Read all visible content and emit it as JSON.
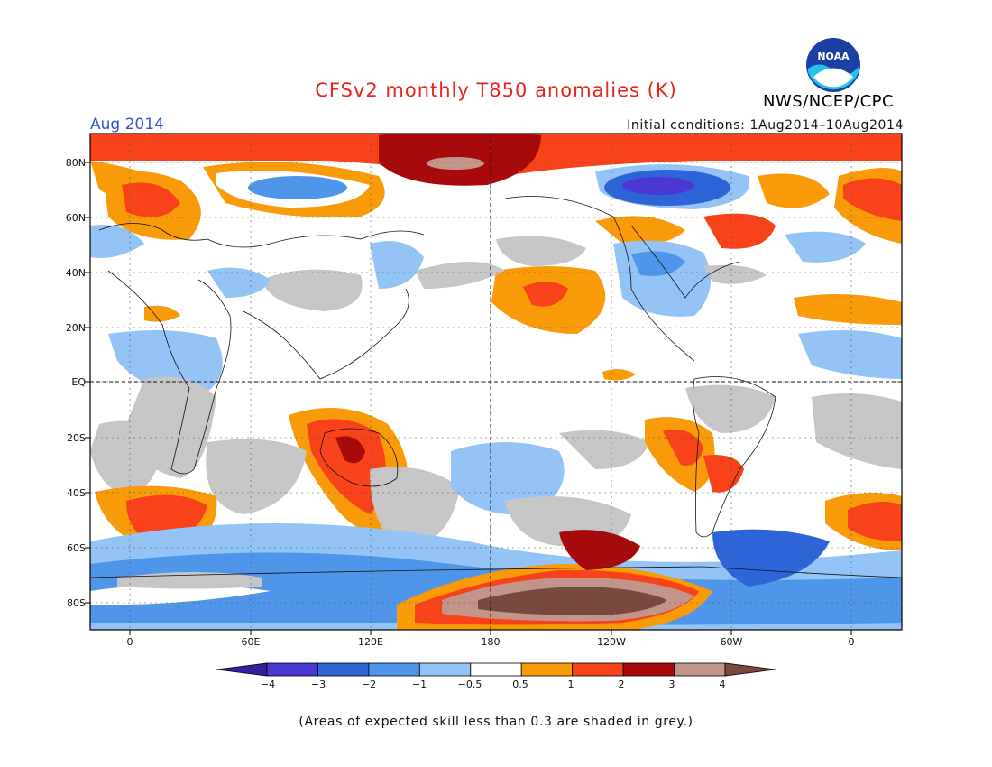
{
  "header": {
    "title": "CFSv2 monthly T850 anomalies (K)",
    "org": "NWS/NCEP/CPC",
    "month": "Aug 2014",
    "initial_conditions": "Initial conditions: 1Aug2014–10Aug2014",
    "logo_text": "NOAA"
  },
  "axes": {
    "lat_labels": [
      "80N",
      "60N",
      "40N",
      "20N",
      "EQ",
      "20S",
      "40S",
      "60S",
      "80S"
    ],
    "lon_labels": [
      "0",
      "60E",
      "120E",
      "180",
      "120W",
      "60W",
      "0"
    ]
  },
  "colorbar": {
    "colors": [
      "#3a1ea0",
      "#4a38d0",
      "#2d65d8",
      "#4f95ea",
      "#93c4f5",
      "#ffffff",
      "#f99a08",
      "#f7421a",
      "#a60a0a",
      "#c2948a",
      "#78493d"
    ],
    "tick_labels": [
      "−4",
      "−3",
      "−2",
      "−1",
      "−0.5",
      "0.5",
      "1",
      "2",
      "3",
      "4"
    ]
  },
  "legend": {
    "skill_grey": "#c6c6c6"
  },
  "footnote": "(Areas of expected skill less than 0.3 are shaded in grey.)"
}
